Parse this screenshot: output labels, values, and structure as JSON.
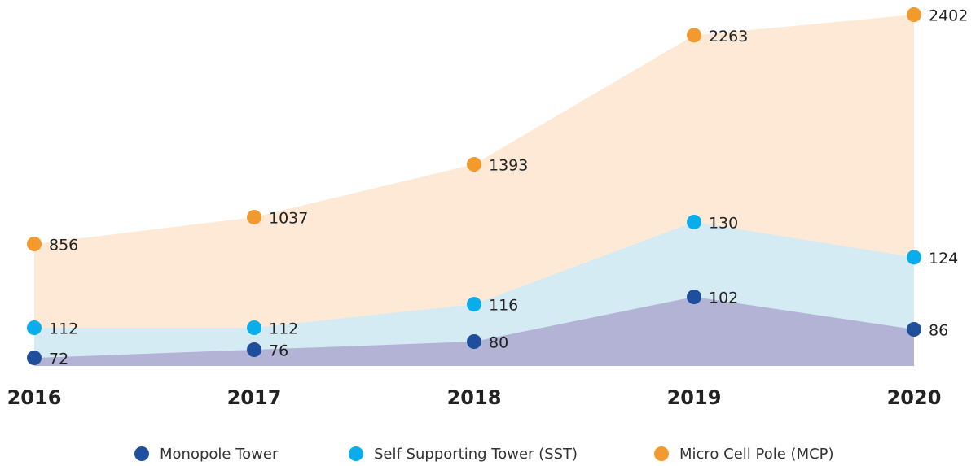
{
  "chart_data": {
    "type": "area",
    "categories": [
      "2016",
      "2017",
      "2018",
      "2019",
      "2020"
    ],
    "series": [
      {
        "name": "Monopole Tower",
        "color": "#1f4e9c",
        "fill": "#b3b3d6",
        "values": [
          72,
          76,
          80,
          102,
          86
        ]
      },
      {
        "name": "Self Supporting Tower (SST)",
        "color": "#0aadeb",
        "fill": "#d4ebf4",
        "values": [
          112,
          112,
          116,
          130,
          124
        ]
      },
      {
        "name": "Micro Cell Pole (MCP)",
        "color": "#f29a2e",
        "fill": "#fde9d6",
        "values": [
          856,
          1037,
          1393,
          2263,
          2402
        ]
      }
    ],
    "legend": "bottom"
  }
}
